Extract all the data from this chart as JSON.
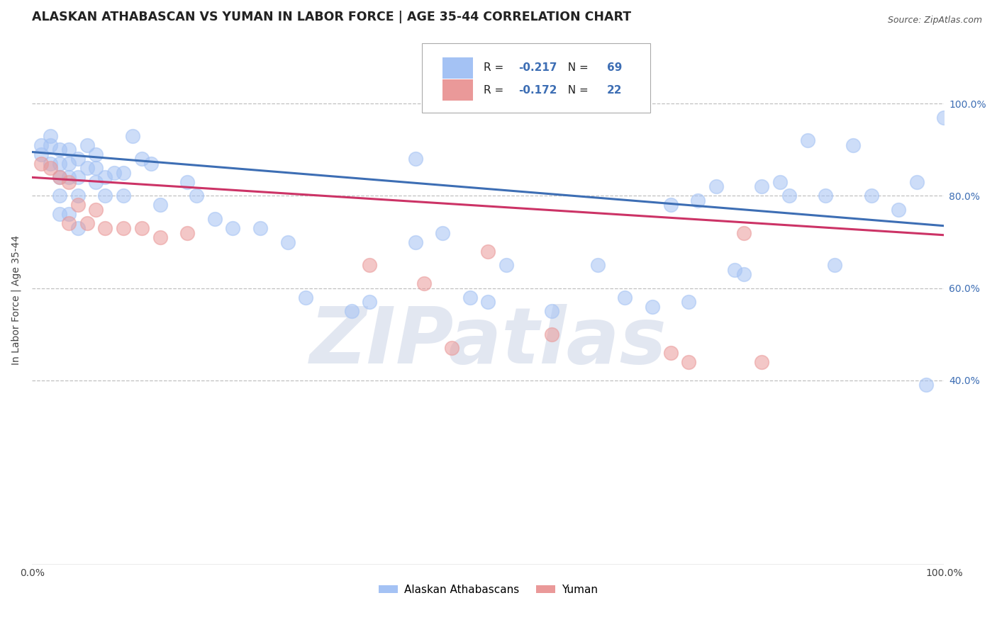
{
  "title": "ALASKAN ATHABASCAN VS YUMAN IN LABOR FORCE | AGE 35-44 CORRELATION CHART",
  "source": "Source: ZipAtlas.com",
  "ylabel": "In Labor Force | Age 35-44",
  "x_min": 0.0,
  "x_max": 1.0,
  "y_min": 0.0,
  "y_max": 1.15,
  "blue_R": -0.217,
  "blue_N": 69,
  "pink_R": -0.172,
  "pink_N": 22,
  "blue_color": "#a4c2f4",
  "pink_color": "#ea9999",
  "blue_line_color": "#3d6eb4",
  "pink_line_color": "#cc3366",
  "background_color": "#ffffff",
  "grid_color": "#c0c0c0",
  "watermark": "ZIPatlas",
  "legend_label_blue": "Alaskan Athabascans",
  "legend_label_pink": "Yuman",
  "blue_scatter_x": [
    0.01,
    0.01,
    0.02,
    0.02,
    0.02,
    0.03,
    0.03,
    0.03,
    0.03,
    0.03,
    0.04,
    0.04,
    0.04,
    0.04,
    0.05,
    0.05,
    0.05,
    0.05,
    0.06,
    0.06,
    0.07,
    0.07,
    0.07,
    0.08,
    0.08,
    0.09,
    0.1,
    0.1,
    0.11,
    0.12,
    0.13,
    0.14,
    0.17,
    0.18,
    0.2,
    0.22,
    0.25,
    0.28,
    0.3,
    0.35,
    0.37,
    0.42,
    0.42,
    0.45,
    0.48,
    0.5,
    0.52,
    0.57,
    0.62,
    0.65,
    0.68,
    0.7,
    0.72,
    0.73,
    0.75,
    0.77,
    0.78,
    0.8,
    0.82,
    0.83,
    0.85,
    0.87,
    0.88,
    0.9,
    0.92,
    0.95,
    0.97,
    0.98,
    1.0
  ],
  "blue_scatter_y": [
    0.91,
    0.89,
    0.93,
    0.91,
    0.87,
    0.9,
    0.87,
    0.84,
    0.8,
    0.76,
    0.9,
    0.87,
    0.84,
    0.76,
    0.88,
    0.84,
    0.8,
    0.73,
    0.91,
    0.86,
    0.89,
    0.86,
    0.83,
    0.84,
    0.8,
    0.85,
    0.85,
    0.8,
    0.93,
    0.88,
    0.87,
    0.78,
    0.83,
    0.8,
    0.75,
    0.73,
    0.73,
    0.7,
    0.58,
    0.55,
    0.57,
    0.88,
    0.7,
    0.72,
    0.58,
    0.57,
    0.65,
    0.55,
    0.65,
    0.58,
    0.56,
    0.78,
    0.57,
    0.79,
    0.82,
    0.64,
    0.63,
    0.82,
    0.83,
    0.8,
    0.92,
    0.8,
    0.65,
    0.91,
    0.8,
    0.77,
    0.83,
    0.39,
    0.97
  ],
  "pink_scatter_x": [
    0.01,
    0.02,
    0.03,
    0.04,
    0.04,
    0.05,
    0.06,
    0.07,
    0.08,
    0.1,
    0.12,
    0.14,
    0.17,
    0.37,
    0.43,
    0.46,
    0.5,
    0.57,
    0.7,
    0.72,
    0.78,
    0.8
  ],
  "pink_scatter_y": [
    0.87,
    0.86,
    0.84,
    0.83,
    0.74,
    0.78,
    0.74,
    0.77,
    0.73,
    0.73,
    0.73,
    0.71,
    0.72,
    0.65,
    0.61,
    0.47,
    0.68,
    0.5,
    0.46,
    0.44,
    0.72,
    0.44
  ],
  "blue_line_x0": 0.0,
  "blue_line_y0": 0.895,
  "blue_line_x1": 1.0,
  "blue_line_y1": 0.735,
  "pink_line_x0": 0.0,
  "pink_line_y0": 0.84,
  "pink_line_x1": 1.0,
  "pink_line_y1": 0.715,
  "x_ticks": [
    0.0,
    0.1,
    0.2,
    0.3,
    0.4,
    0.5,
    0.6,
    0.7,
    0.8,
    0.9,
    1.0
  ],
  "x_tick_labels": [
    "0.0%",
    "",
    "",
    "",
    "",
    "",
    "",
    "",
    "",
    "",
    "100.0%"
  ],
  "y_ticks": [
    0.0,
    0.2,
    0.4,
    0.6,
    0.8,
    1.0
  ],
  "y_tick_labels_right": [
    "",
    "",
    "40.0%",
    "60.0%",
    "80.0%",
    "100.0%"
  ]
}
